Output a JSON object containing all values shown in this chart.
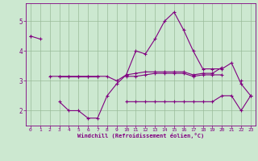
{
  "xlabel": "Windchill (Refroidissement éolien,°C)",
  "hours": [
    0,
    1,
    2,
    3,
    4,
    5,
    6,
    7,
    8,
    9,
    10,
    11,
    12,
    13,
    14,
    15,
    16,
    17,
    18,
    19,
    20,
    21,
    22,
    23
  ],
  "line1": [
    4.5,
    4.4,
    null,
    null,
    null,
    null,
    null,
    null,
    null,
    null,
    null,
    null,
    null,
    null,
    null,
    null,
    null,
    null,
    null,
    null,
    null,
    null,
    null,
    null
  ],
  "line2": [
    4.5,
    null,
    3.15,
    3.15,
    3.15,
    3.15,
    3.15,
    3.15,
    3.15,
    3.0,
    3.2,
    3.25,
    3.3,
    3.3,
    3.3,
    3.3,
    3.3,
    3.2,
    3.25,
    3.25,
    3.45,
    null,
    3.0,
    null
  ],
  "line3": [
    null,
    null,
    null,
    3.15,
    3.15,
    3.15,
    3.15,
    3.15,
    null,
    null,
    3.15,
    3.15,
    3.2,
    3.25,
    3.25,
    3.25,
    3.25,
    3.15,
    3.2,
    3.2,
    3.2,
    null,
    null,
    null
  ],
  "line4": [
    null,
    null,
    null,
    2.3,
    2.0,
    2.0,
    1.75,
    1.75,
    2.5,
    2.9,
    3.2,
    4.0,
    3.9,
    4.4,
    5.0,
    5.3,
    4.7,
    4.0,
    3.4,
    3.4,
    3.4,
    3.6,
    2.9,
    2.5
  ],
  "line5": [
    null,
    null,
    null,
    null,
    null,
    null,
    null,
    null,
    null,
    null,
    2.3,
    2.3,
    2.3,
    2.3,
    2.3,
    2.3,
    2.3,
    2.3,
    2.3,
    2.3,
    2.5,
    2.5,
    2.0,
    2.5
  ],
  "bg_color": "#cce8d0",
  "line_color": "#800080",
  "grid_color": "#99bb99",
  "ylim": [
    1.5,
    5.6
  ],
  "xlim": [
    -0.5,
    23.5
  ],
  "yticks": [
    2,
    3,
    4,
    5
  ],
  "xticks": [
    0,
    1,
    2,
    3,
    4,
    5,
    6,
    7,
    8,
    9,
    10,
    11,
    12,
    13,
    14,
    15,
    16,
    17,
    18,
    19,
    20,
    21,
    22,
    23
  ]
}
